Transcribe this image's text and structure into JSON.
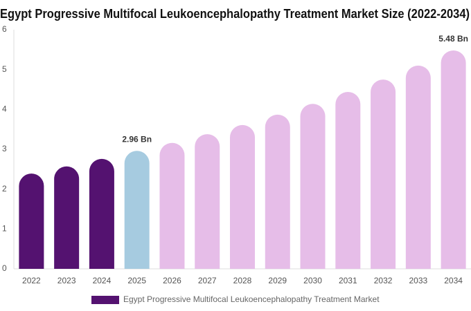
{
  "chart_data": {
    "type": "bar",
    "title": "Egypt Progressive Multifocal Leukoencephalopathy Treatment Market Size (2022-2034)",
    "categories": [
      "2022",
      "2023",
      "2024",
      "2025",
      "2026",
      "2027",
      "2028",
      "2029",
      "2030",
      "2031",
      "2032",
      "2033",
      "2034"
    ],
    "series": [
      {
        "name": "Egypt Progressive Multifocal Leukoencephalopathy Treatment Market",
        "color": "#541270",
        "values": [
          2.39,
          2.57,
          2.76,
          2.96,
          3.16,
          3.38,
          3.61,
          3.87,
          4.14,
          4.44,
          4.75,
          5.1,
          5.48
        ],
        "value_labels": [
          null,
          null,
          null,
          "2.96 Bn",
          null,
          null,
          null,
          null,
          null,
          null,
          null,
          null,
          "5.48 Bn"
        ],
        "colors": [
          "#541270",
          "#541270",
          "#541270",
          "#a6cbe0",
          "#e6bde8",
          "#e6bde8",
          "#e6bde8",
          "#e6bde8",
          "#e6bde8",
          "#e6bde8",
          "#e6bde8",
          "#e6bde8",
          "#e6bde8"
        ]
      }
    ],
    "ylim": [
      0,
      6
    ],
    "yticks": [
      0,
      1,
      2,
      3,
      4,
      5,
      6
    ],
    "grid": false
  }
}
